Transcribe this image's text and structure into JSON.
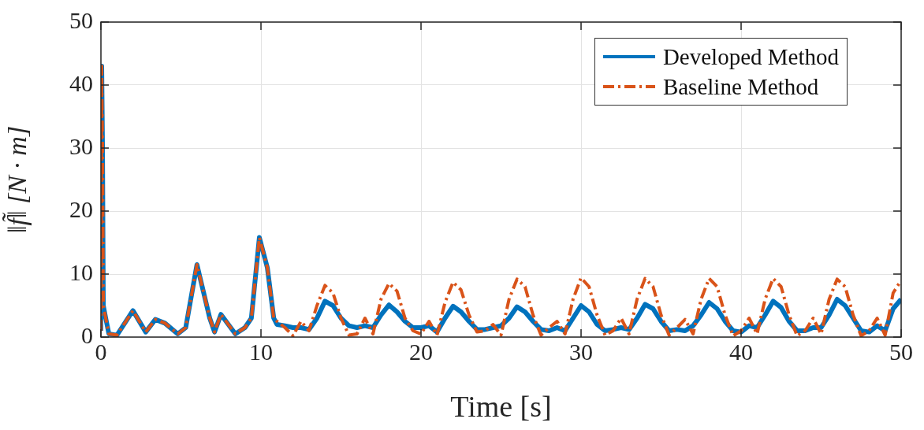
{
  "chart_data": {
    "type": "line",
    "xlabel": "Time [s]",
    "ylabel": "‖f̃‖ [N · m]",
    "xlim": [
      0,
      50
    ],
    "xticks": [
      0,
      10,
      20,
      30,
      40,
      50
    ],
    "ylim": [
      0,
      50
    ],
    "yticks": [
      0,
      10,
      20,
      30,
      40,
      50
    ],
    "grid": true,
    "legend": "top right",
    "marker": "none",
    "series": [
      {
        "name": "Developed Method",
        "color": "#0072bd",
        "line_style": "solid",
        "x": [
          0,
          0.05,
          0.1,
          0.15,
          0.3,
          0.5,
          1,
          2,
          2.8,
          3.4,
          4,
          4.8,
          5.3,
          6,
          6.8,
          7.1,
          7.5,
          8.4,
          9,
          9.4,
          9.9,
          10.4,
          10.8,
          11,
          11.5,
          12,
          12.5,
          13,
          13.5,
          14,
          14.5,
          15,
          15.5,
          16,
          16.5,
          17,
          17.5,
          18,
          18.5,
          19,
          19.5,
          20,
          20.5,
          21,
          21.5,
          22,
          22.5,
          23,
          23.5,
          24,
          24.5,
          25,
          25.5,
          26,
          26.5,
          27,
          27.5,
          28,
          28.5,
          29,
          29.5,
          30,
          30.5,
          31,
          31.5,
          32,
          32.5,
          33,
          33.5,
          34,
          34.5,
          35,
          35.5,
          36,
          36.5,
          37,
          37.5,
          38,
          38.5,
          39,
          39.5,
          40,
          40.5,
          41,
          41.5,
          42,
          42.5,
          43,
          43.5,
          44,
          44.5,
          45,
          45.5,
          46,
          46.5,
          47,
          47.5,
          48,
          48.5,
          49,
          49.5,
          50
        ],
        "values": [
          1,
          43,
          30,
          5,
          3,
          0.5,
          0.3,
          4.2,
          0.8,
          2.8,
          2.2,
          0.5,
          1.5,
          11.5,
          3,
          0.8,
          3.6,
          0.5,
          1.5,
          3,
          15.8,
          11,
          3,
          2,
          1.8,
          1.5,
          1.5,
          1.2,
          3,
          5.7,
          5,
          3,
          1.8,
          1.5,
          1.8,
          1.5,
          3.5,
          5.1,
          4,
          2.5,
          1.5,
          1.5,
          1.8,
          0.8,
          3,
          4.9,
          4,
          2.5,
          1.2,
          1.2,
          1.5,
          1.8,
          3,
          4.8,
          4,
          2.5,
          1.2,
          1,
          1.5,
          1,
          3,
          5,
          4,
          2,
          1,
          1.2,
          1.5,
          1.2,
          3,
          5.2,
          4.5,
          2.5,
          1,
          1.2,
          1,
          1.8,
          3.5,
          5.5,
          4.5,
          2.5,
          1,
          0.8,
          1.8,
          1.5,
          3.5,
          5.7,
          4.7,
          2.5,
          1,
          1,
          1.5,
          1.5,
          3.5,
          6,
          5,
          3,
          1,
          0.8,
          1.8,
          1,
          4.5,
          6
        ]
      },
      {
        "name": "Baseline Method",
        "color": "#d95319",
        "line_style": "dashed",
        "x": [
          0,
          0.05,
          0.1,
          0.15,
          0.3,
          0.5,
          1,
          2,
          2.8,
          3.4,
          4,
          4.8,
          5.3,
          6,
          6.8,
          7.1,
          7.5,
          8.4,
          9,
          9.4,
          9.9,
          10.4,
          10.8,
          11,
          11.5,
          12,
          12.5,
          13,
          13.5,
          14,
          14.5,
          15,
          15.5,
          16,
          16.5,
          17,
          17.5,
          18,
          18.5,
          19,
          19.5,
          20,
          20.5,
          21,
          21.5,
          22,
          22.5,
          23,
          23.5,
          24,
          24.5,
          25,
          25.5,
          26,
          26.5,
          27,
          27.5,
          28,
          28.5,
          29,
          29.5,
          30,
          30.5,
          31,
          31.5,
          32,
          32.5,
          33,
          33.5,
          34,
          34.5,
          35,
          35.5,
          36,
          36.5,
          37,
          37.5,
          38,
          38.5,
          39,
          39.5,
          40,
          40.5,
          41,
          41.5,
          42,
          42.5,
          43,
          43.5,
          44,
          44.5,
          45,
          45.5,
          46,
          46.5,
          47,
          47.5,
          48,
          48.5,
          49,
          49.5,
          50
        ],
        "values": [
          1,
          43,
          30,
          5,
          3,
          0.5,
          0.3,
          4.2,
          0.8,
          2.8,
          2.2,
          0.5,
          1.5,
          11.5,
          3,
          0.8,
          3.6,
          0.5,
          1.5,
          3,
          15.8,
          11,
          3,
          2.5,
          1.5,
          0.2,
          2.5,
          1,
          5,
          8.2,
          7,
          3,
          0.3,
          0.5,
          3,
          0.5,
          6,
          8.5,
          7.3,
          3,
          1,
          0.5,
          2.5,
          0.3,
          5.5,
          8.7,
          7.5,
          3.5,
          0.8,
          1,
          2,
          0.3,
          6,
          9.2,
          8,
          3.5,
          0.3,
          1.5,
          2.5,
          0.5,
          6,
          9.4,
          8,
          3.5,
          0.3,
          1,
          3,
          0.5,
          6,
          9.3,
          8,
          3.5,
          0.3,
          1.5,
          2.8,
          0.5,
          6,
          9.3,
          8,
          3.5,
          0.2,
          1,
          3,
          0.5,
          6,
          9.3,
          8,
          3.5,
          0.2,
          1,
          3,
          0.5,
          6,
          9.2,
          8,
          3.5,
          0.2,
          1,
          3,
          0.3,
          7,
          9
        ]
      }
    ]
  }
}
